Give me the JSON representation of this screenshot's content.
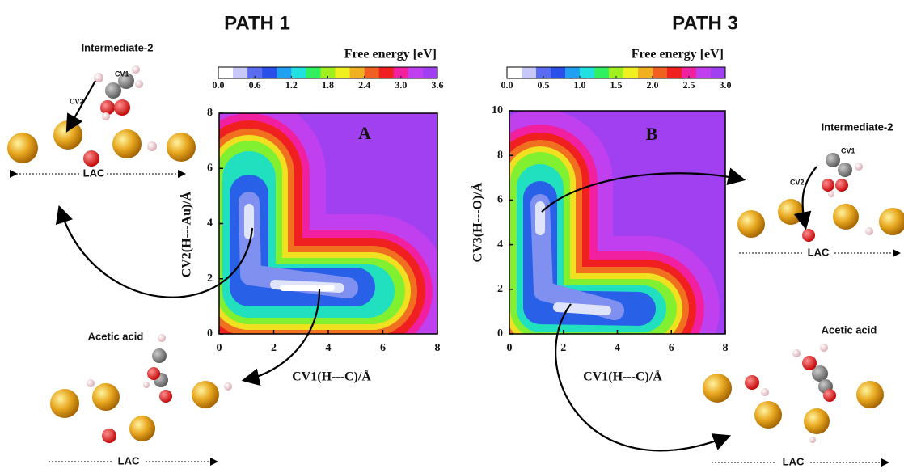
{
  "chart_data": [
    {
      "type": "contour",
      "title": "PATH 1",
      "panel_label": "A",
      "colorbar_label": "Free energy [eV]",
      "colormap": [
        "#ffffff",
        "#c8c8f8",
        "#5a6cf0",
        "#2850e8",
        "#20a0f0",
        "#20e0e0",
        "#30f060",
        "#a0f020",
        "#f0f020",
        "#f0b020",
        "#f06020",
        "#f02020",
        "#f020a0",
        "#c040f0",
        "#a040f0"
      ],
      "clim": [
        0,
        3.6
      ],
      "cticks": [
        {
          "value": 0,
          "label": "0.0"
        },
        0.6,
        1.2,
        1.8,
        2.4,
        {
          "value": 3,
          "label": "3.0"
        },
        3.6
      ],
      "x_label": "CV1(H---C)/Å",
      "y_label": "CV2(H---Au)/Å",
      "xlim": [
        0,
        8
      ],
      "ylim": [
        0,
        8
      ],
      "xticks": [
        0,
        2,
        4,
        6,
        8
      ],
      "yticks": [
        0,
        2,
        4,
        6,
        8
      ]
    },
    {
      "type": "contour",
      "title": "PATH 3",
      "panel_label": "B",
      "colorbar_label": "Free energy [eV]",
      "colormap": [
        "#ffffff",
        "#c8c8f8",
        "#5a6cf0",
        "#2850e8",
        "#20a0f0",
        "#20e0e0",
        "#30f060",
        "#a0f020",
        "#f0f020",
        "#f0b020",
        "#f06020",
        "#f02020",
        "#f020a0",
        "#c040f0",
        "#a040f0"
      ],
      "clim": [
        0,
        3
      ],
      "cticks": [
        {
          "value": 0,
          "label": "0.0"
        },
        0.5,
        {
          "value": 1,
          "label": "1.0"
        },
        1.5,
        {
          "value": 2,
          "label": "2.0"
        },
        2.5,
        {
          "value": 3,
          "label": "3.0"
        }
      ],
      "x_label": "CV1(H---C)/Å",
      "y_label": "CV3(H---O)/Å",
      "xlim": [
        0,
        8
      ],
      "ylim": [
        0,
        10
      ],
      "xticks": [
        0,
        2,
        4,
        6,
        8
      ],
      "yticks": [
        0,
        2,
        4,
        6,
        8,
        10
      ]
    }
  ],
  "annotations": {
    "intermediate_left": "Intermediate-2",
    "intermediate_right": "Intermediate-2",
    "acetic_left": "Acetic acid",
    "acetic_right": "Acetic acid",
    "lac": "LAC",
    "cv1": "CV1",
    "cv2": "CV2"
  }
}
